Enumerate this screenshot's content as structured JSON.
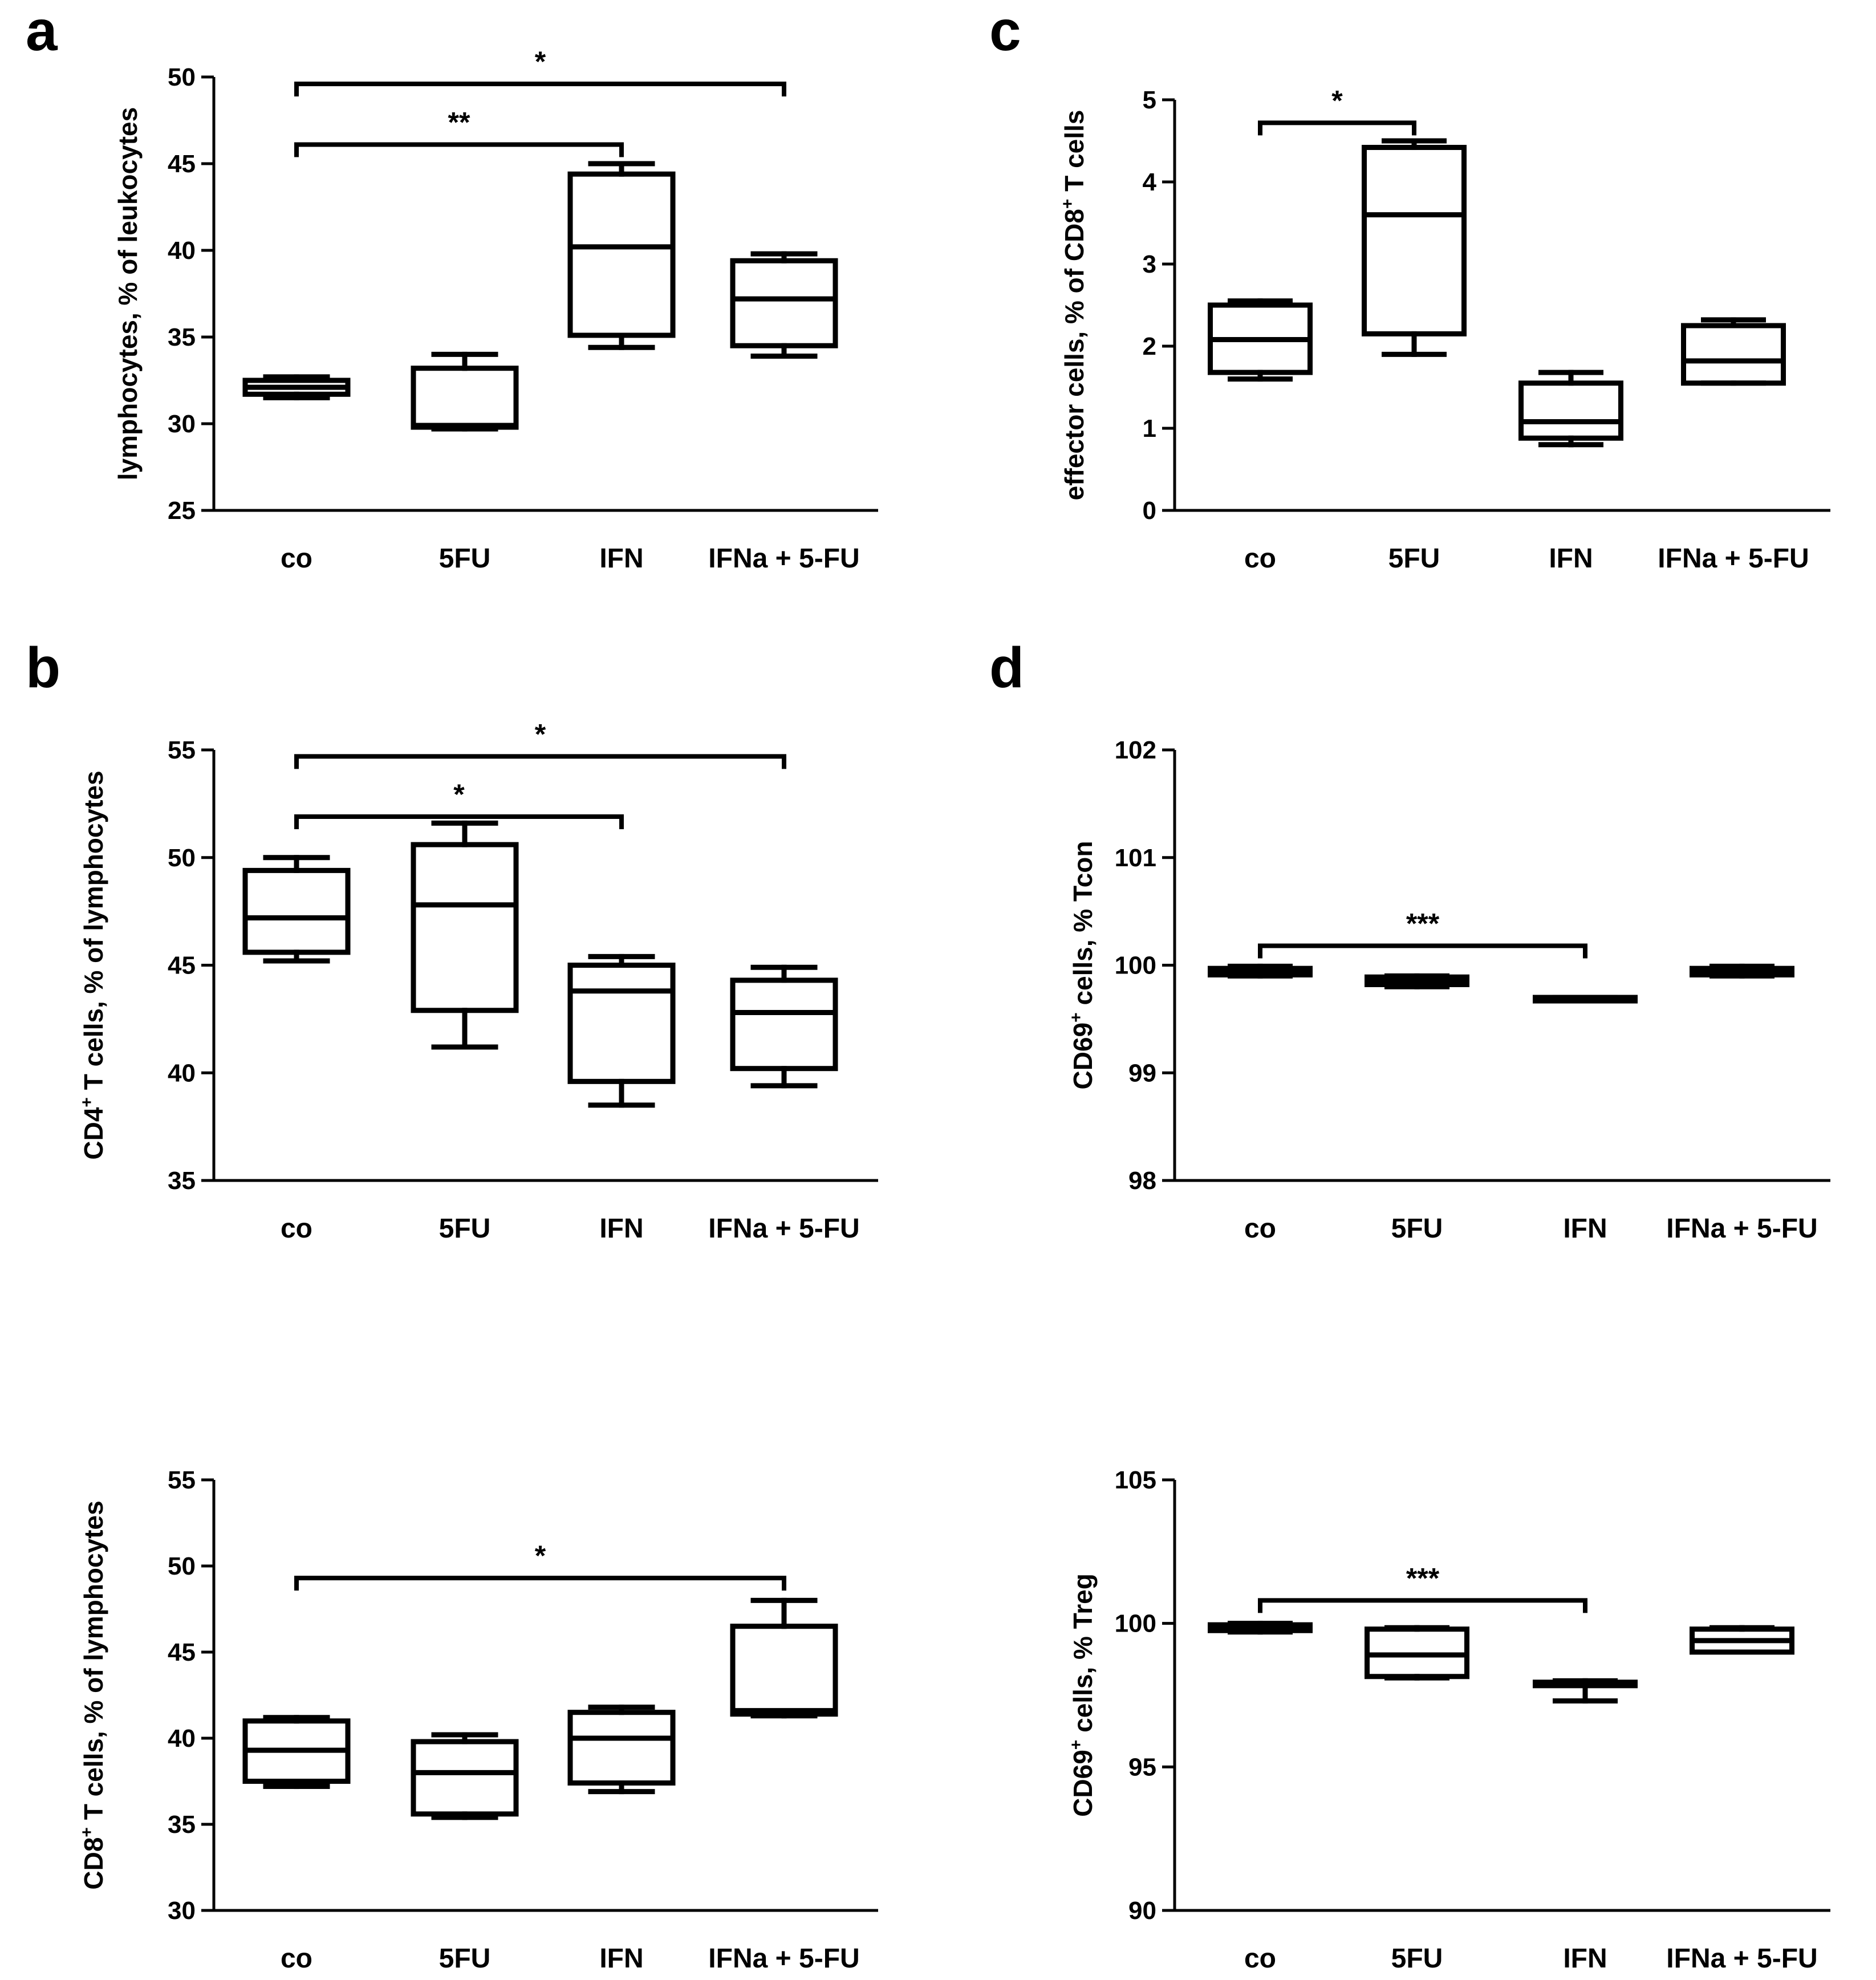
{
  "chart_data": [
    {
      "panel": "a",
      "type": "box",
      "title": "",
      "xlabel": "",
      "ylabel": "lymphocytes, % of leukocytes",
      "ylabel_main": "lymphocytes, % of leukocytes",
      "ylabel_sup": "",
      "ylabel_post": "",
      "ylim": [
        25,
        50
      ],
      "yticks": [
        25,
        30,
        35,
        40,
        45,
        50
      ],
      "categories": [
        "co",
        "5FU",
        "IFN",
        "IFNa + 5-FU"
      ],
      "boxes": [
        {
          "min": 31.5,
          "q1": 31.7,
          "median": 32.1,
          "q3": 32.5,
          "max": 32.7
        },
        {
          "min": 29.7,
          "q1": 29.8,
          "median": 29.9,
          "q3": 33.2,
          "max": 34.0
        },
        {
          "min": 34.4,
          "q1": 35.1,
          "median": 40.2,
          "q3": 44.4,
          "max": 45.0
        },
        {
          "min": 33.9,
          "q1": 34.5,
          "median": 37.2,
          "q3": 39.4,
          "max": 39.8
        }
      ],
      "significance": [
        {
          "from": 0,
          "to": 3,
          "y": 49.6,
          "label": "*"
        },
        {
          "from": 0,
          "to": 2,
          "y": 46.1,
          "label": "**"
        }
      ]
    },
    {
      "panel": "b",
      "type": "box",
      "title": "",
      "xlabel": "",
      "ylabel": "CD4+ T cells, % of lymphocytes",
      "ylabel_main": "CD4",
      "ylabel_sup": "+",
      "ylabel_post": " T cells, % of lymphocytes",
      "ylim": [
        35,
        55
      ],
      "yticks": [
        35,
        40,
        45,
        50,
        55
      ],
      "categories": [
        "co",
        "5FU",
        "IFN",
        "IFNa + 5-FU"
      ],
      "boxes": [
        {
          "min": 45.2,
          "q1": 45.6,
          "median": 47.2,
          "q3": 49.4,
          "max": 50.0
        },
        {
          "min": 41.2,
          "q1": 42.9,
          "median": 47.8,
          "q3": 50.6,
          "max": 51.6
        },
        {
          "min": 38.5,
          "q1": 39.6,
          "median": 43.8,
          "q3": 45.0,
          "max": 45.4
        },
        {
          "min": 39.4,
          "q1": 40.2,
          "median": 42.8,
          "q3": 44.3,
          "max": 44.9
        }
      ],
      "significance": [
        {
          "from": 0,
          "to": 3,
          "y": 54.7,
          "label": "*"
        },
        {
          "from": 0,
          "to": 2,
          "y": 51.9,
          "label": "*"
        }
      ]
    },
    {
      "panel": "b2",
      "type": "box",
      "title": "",
      "xlabel": "",
      "ylabel": "CD8+ T cells, % of lymphocytes",
      "ylabel_main": "CD8",
      "ylabel_sup": "+",
      "ylabel_post": " T cells, % of lymphocytes",
      "ylim": [
        30,
        55
      ],
      "yticks": [
        30,
        35,
        40,
        45,
        50,
        55
      ],
      "categories": [
        "co",
        "5FU",
        "IFN",
        "IFNa + 5-FU"
      ],
      "boxes": [
        {
          "min": 37.2,
          "q1": 37.5,
          "median": 39.3,
          "q3": 41.0,
          "max": 41.2
        },
        {
          "min": 35.4,
          "q1": 35.6,
          "median": 38.0,
          "q3": 39.8,
          "max": 40.2
        },
        {
          "min": 36.9,
          "q1": 37.4,
          "median": 40.0,
          "q3": 41.5,
          "max": 41.8
        },
        {
          "min": 41.3,
          "q1": 41.4,
          "median": 41.6,
          "q3": 46.5,
          "max": 48.0
        }
      ],
      "significance": [
        {
          "from": 0,
          "to": 3,
          "y": 49.3,
          "label": "*"
        }
      ]
    },
    {
      "panel": "c",
      "type": "box",
      "title": "",
      "xlabel": "",
      "ylabel": "effector cells, % of CD8+ T cells",
      "ylabel_main": "effector cells, % of CD8",
      "ylabel_sup": "+",
      "ylabel_post": " T cells",
      "ylim": [
        0,
        5
      ],
      "yticks": [
        0,
        1,
        2,
        3,
        4,
        5
      ],
      "categories": [
        "co",
        "5FU",
        "IFN",
        "IFNa + 5-FU"
      ],
      "boxes": [
        {
          "min": 1.6,
          "q1": 1.68,
          "median": 2.08,
          "q3": 2.5,
          "max": 2.55
        },
        {
          "min": 1.9,
          "q1": 2.15,
          "median": 3.6,
          "q3": 4.42,
          "max": 4.5
        },
        {
          "min": 0.8,
          "q1": 0.88,
          "median": 1.08,
          "q3": 1.55,
          "max": 1.68
        },
        {
          "min": 1.55,
          "q1": 1.55,
          "median": 1.82,
          "q3": 2.25,
          "max": 2.32
        }
      ],
      "significance": [
        {
          "from": 0,
          "to": 1,
          "y": 4.72,
          "label": "*"
        }
      ]
    },
    {
      "panel": "d",
      "type": "box",
      "title": "",
      "xlabel": "",
      "ylabel": "CD69+ cells, % Tcon",
      "ylabel_main": "CD69",
      "ylabel_sup": "+",
      "ylabel_post": " cells, % Tcon",
      "ylim": [
        98,
        102
      ],
      "yticks": [
        98,
        99,
        100,
        101,
        102
      ],
      "categories": [
        "co",
        "5FU",
        "IFN",
        "IFNa + 5-FU"
      ],
      "boxes": [
        {
          "min": 99.9,
          "q1": 99.91,
          "median": 99.94,
          "q3": 99.97,
          "max": 99.99
        },
        {
          "min": 99.8,
          "q1": 99.82,
          "median": 99.86,
          "q3": 99.89,
          "max": 99.9
        },
        {
          "min": 99.7,
          "q1": 99.7,
          "median": 99.7,
          "q3": 99.7,
          "max": 99.7
        },
        {
          "min": 99.9,
          "q1": 99.91,
          "median": 99.94,
          "q3": 99.97,
          "max": 99.99
        }
      ],
      "significance": [
        {
          "from": 0,
          "to": 2,
          "y": 100.18,
          "label": "***"
        }
      ]
    },
    {
      "panel": "d2",
      "type": "box",
      "title": "",
      "xlabel": "",
      "ylabel": "CD69+ cells, % Treg",
      "ylabel_main": "CD69",
      "ylabel_sup": "+",
      "ylabel_post": " cells, % Treg",
      "ylim": [
        90,
        105
      ],
      "yticks": [
        90,
        95,
        100,
        105
      ],
      "categories": [
        "co",
        "5FU",
        "IFN",
        "IFNa + 5-FU"
      ],
      "boxes": [
        {
          "min": 99.7,
          "q1": 99.75,
          "median": 99.85,
          "q3": 99.95,
          "max": 100.0
        },
        {
          "min": 98.1,
          "q1": 98.15,
          "median": 98.9,
          "q3": 99.8,
          "max": 99.85
        },
        {
          "min": 97.3,
          "q1": 97.85,
          "median": 97.9,
          "q3": 97.95,
          "max": 98.0
        },
        {
          "min": 99.0,
          "q1": 99.0,
          "median": 99.4,
          "q3": 99.8,
          "max": 99.85
        }
      ],
      "significance": [
        {
          "from": 0,
          "to": 2,
          "y": 100.8,
          "label": "***"
        }
      ]
    }
  ],
  "panel_letters": [
    "a",
    "b",
    "c",
    "d"
  ]
}
